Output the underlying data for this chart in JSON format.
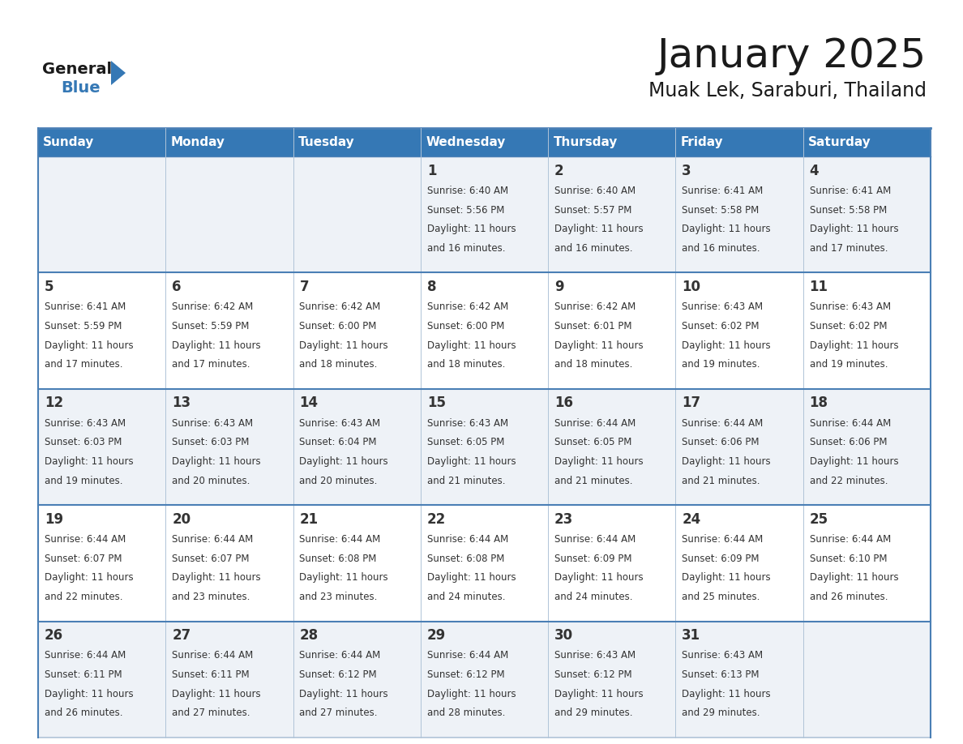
{
  "title": "January 2025",
  "subtitle": "Muak Lek, Saraburi, Thailand",
  "days_of_week": [
    "Sunday",
    "Monday",
    "Tuesday",
    "Wednesday",
    "Thursday",
    "Friday",
    "Saturday"
  ],
  "header_bg": "#3578b5",
  "header_text": "#ffffff",
  "cell_bg_odd": "#eef2f7",
  "cell_bg_even": "#ffffff",
  "border_color": "#4a7fb5",
  "day_num_color": "#333333",
  "text_color": "#333333",
  "calendar_data": [
    [
      null,
      null,
      null,
      {
        "day": 1,
        "sunrise": "6:40 AM",
        "sunset": "5:56 PM",
        "daylight_hours": 11,
        "daylight_minutes": 16
      },
      {
        "day": 2,
        "sunrise": "6:40 AM",
        "sunset": "5:57 PM",
        "daylight_hours": 11,
        "daylight_minutes": 16
      },
      {
        "day": 3,
        "sunrise": "6:41 AM",
        "sunset": "5:58 PM",
        "daylight_hours": 11,
        "daylight_minutes": 16
      },
      {
        "day": 4,
        "sunrise": "6:41 AM",
        "sunset": "5:58 PM",
        "daylight_hours": 11,
        "daylight_minutes": 17
      }
    ],
    [
      {
        "day": 5,
        "sunrise": "6:41 AM",
        "sunset": "5:59 PM",
        "daylight_hours": 11,
        "daylight_minutes": 17
      },
      {
        "day": 6,
        "sunrise": "6:42 AM",
        "sunset": "5:59 PM",
        "daylight_hours": 11,
        "daylight_minutes": 17
      },
      {
        "day": 7,
        "sunrise": "6:42 AM",
        "sunset": "6:00 PM",
        "daylight_hours": 11,
        "daylight_minutes": 18
      },
      {
        "day": 8,
        "sunrise": "6:42 AM",
        "sunset": "6:00 PM",
        "daylight_hours": 11,
        "daylight_minutes": 18
      },
      {
        "day": 9,
        "sunrise": "6:42 AM",
        "sunset": "6:01 PM",
        "daylight_hours": 11,
        "daylight_minutes": 18
      },
      {
        "day": 10,
        "sunrise": "6:43 AM",
        "sunset": "6:02 PM",
        "daylight_hours": 11,
        "daylight_minutes": 19
      },
      {
        "day": 11,
        "sunrise": "6:43 AM",
        "sunset": "6:02 PM",
        "daylight_hours": 11,
        "daylight_minutes": 19
      }
    ],
    [
      {
        "day": 12,
        "sunrise": "6:43 AM",
        "sunset": "6:03 PM",
        "daylight_hours": 11,
        "daylight_minutes": 19
      },
      {
        "day": 13,
        "sunrise": "6:43 AM",
        "sunset": "6:03 PM",
        "daylight_hours": 11,
        "daylight_minutes": 20
      },
      {
        "day": 14,
        "sunrise": "6:43 AM",
        "sunset": "6:04 PM",
        "daylight_hours": 11,
        "daylight_minutes": 20
      },
      {
        "day": 15,
        "sunrise": "6:43 AM",
        "sunset": "6:05 PM",
        "daylight_hours": 11,
        "daylight_minutes": 21
      },
      {
        "day": 16,
        "sunrise": "6:44 AM",
        "sunset": "6:05 PM",
        "daylight_hours": 11,
        "daylight_minutes": 21
      },
      {
        "day": 17,
        "sunrise": "6:44 AM",
        "sunset": "6:06 PM",
        "daylight_hours": 11,
        "daylight_minutes": 21
      },
      {
        "day": 18,
        "sunrise": "6:44 AM",
        "sunset": "6:06 PM",
        "daylight_hours": 11,
        "daylight_minutes": 22
      }
    ],
    [
      {
        "day": 19,
        "sunrise": "6:44 AM",
        "sunset": "6:07 PM",
        "daylight_hours": 11,
        "daylight_minutes": 22
      },
      {
        "day": 20,
        "sunrise": "6:44 AM",
        "sunset": "6:07 PM",
        "daylight_hours": 11,
        "daylight_minutes": 23
      },
      {
        "day": 21,
        "sunrise": "6:44 AM",
        "sunset": "6:08 PM",
        "daylight_hours": 11,
        "daylight_minutes": 23
      },
      {
        "day": 22,
        "sunrise": "6:44 AM",
        "sunset": "6:08 PM",
        "daylight_hours": 11,
        "daylight_minutes": 24
      },
      {
        "day": 23,
        "sunrise": "6:44 AM",
        "sunset": "6:09 PM",
        "daylight_hours": 11,
        "daylight_minutes": 24
      },
      {
        "day": 24,
        "sunrise": "6:44 AM",
        "sunset": "6:09 PM",
        "daylight_hours": 11,
        "daylight_minutes": 25
      },
      {
        "day": 25,
        "sunrise": "6:44 AM",
        "sunset": "6:10 PM",
        "daylight_hours": 11,
        "daylight_minutes": 26
      }
    ],
    [
      {
        "day": 26,
        "sunrise": "6:44 AM",
        "sunset": "6:11 PM",
        "daylight_hours": 11,
        "daylight_minutes": 26
      },
      {
        "day": 27,
        "sunrise": "6:44 AM",
        "sunset": "6:11 PM",
        "daylight_hours": 11,
        "daylight_minutes": 27
      },
      {
        "day": 28,
        "sunrise": "6:44 AM",
        "sunset": "6:12 PM",
        "daylight_hours": 11,
        "daylight_minutes": 27
      },
      {
        "day": 29,
        "sunrise": "6:44 AM",
        "sunset": "6:12 PM",
        "daylight_hours": 11,
        "daylight_minutes": 28
      },
      {
        "day": 30,
        "sunrise": "6:43 AM",
        "sunset": "6:12 PM",
        "daylight_hours": 11,
        "daylight_minutes": 29
      },
      {
        "day": 31,
        "sunrise": "6:43 AM",
        "sunset": "6:13 PM",
        "daylight_hours": 11,
        "daylight_minutes": 29
      },
      null
    ]
  ]
}
